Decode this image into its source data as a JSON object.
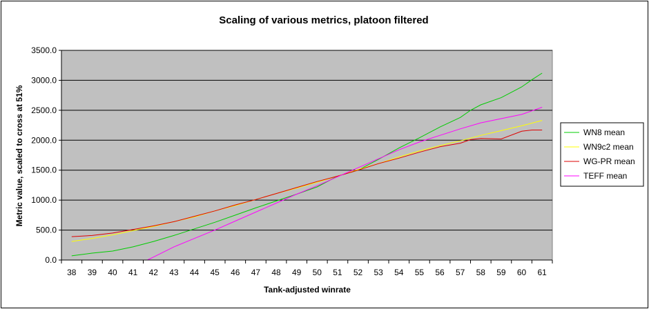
{
  "chart_data": {
    "type": "line",
    "title": "Scaling of various metrics, platoon filtered",
    "xlabel": "Tank-adjusted winrate",
    "ylabel": "Metric value, scaled to cross at 51%",
    "xlim": [
      37.5,
      61.5
    ],
    "ylim": [
      0,
      3500
    ],
    "x_ticks": [
      38,
      39,
      40,
      41,
      42,
      43,
      44,
      45,
      46,
      47,
      48,
      49,
      50,
      51,
      52,
      53,
      54,
      55,
      56,
      57,
      58,
      59,
      60,
      61
    ],
    "y_ticks": [
      "0.0",
      "500.0",
      "1000.0",
      "1500.0",
      "2000.0",
      "2500.0",
      "3000.0",
      "3500.0"
    ],
    "grid": true,
    "legend_position": "right",
    "plot_background": "#c0c0c0",
    "series": [
      {
        "name": "WN8 mean",
        "color": "#00cc00",
        "x": [
          38,
          39,
          40,
          41,
          42,
          43,
          44,
          45,
          46,
          47,
          48,
          49,
          50,
          51,
          52,
          53,
          54,
          55,
          56,
          57,
          57.5,
          58,
          59,
          60,
          60.5,
          61
        ],
        "y": [
          70,
          115,
          150,
          220,
          310,
          410,
          520,
          630,
          750,
          870,
          985,
          1100,
          1220,
          1400,
          1500,
          1680,
          1870,
          2040,
          2220,
          2380,
          2500,
          2590,
          2710,
          2890,
          3010,
          3120
        ]
      },
      {
        "name": "WN9c2 mean",
        "color": "#ffff00",
        "x": [
          38,
          39,
          40,
          41,
          42,
          43,
          44,
          45,
          46,
          47,
          48,
          49,
          50,
          51,
          52,
          53,
          54,
          55,
          56,
          57,
          58,
          59,
          60,
          61
        ],
        "y": [
          310,
          360,
          420,
          490,
          560,
          640,
          720,
          820,
          910,
          1010,
          1110,
          1200,
          1300,
          1400,
          1510,
          1610,
          1720,
          1820,
          1910,
          1990,
          2080,
          2160,
          2240,
          2330
        ]
      },
      {
        "name": "WG-PR mean",
        "color": "#dd0000",
        "x": [
          38,
          39,
          40,
          41,
          42,
          43,
          44,
          45,
          46,
          47,
          48,
          49,
          50,
          51,
          52,
          53,
          54,
          55,
          56,
          57,
          57.5,
          58,
          59,
          60,
          60.5,
          61
        ],
        "y": [
          390,
          410,
          450,
          510,
          570,
          640,
          730,
          820,
          920,
          1010,
          1110,
          1210,
          1310,
          1400,
          1500,
          1610,
          1700,
          1800,
          1890,
          1950,
          2010,
          2030,
          2020,
          2150,
          2170,
          2170
        ]
      },
      {
        "name": "TEFF mean",
        "color": "#ff00ff",
        "x": [
          41.7,
          42,
          43,
          44,
          45,
          46,
          47,
          48,
          49,
          50,
          51,
          52,
          53,
          54,
          55,
          56,
          57,
          58,
          59,
          60,
          61
        ],
        "y": [
          0,
          50,
          220,
          360,
          500,
          650,
          800,
          950,
          1100,
          1240,
          1390,
          1540,
          1690,
          1840,
          1970,
          2080,
          2190,
          2290,
          2360,
          2430,
          2550
        ]
      }
    ]
  }
}
